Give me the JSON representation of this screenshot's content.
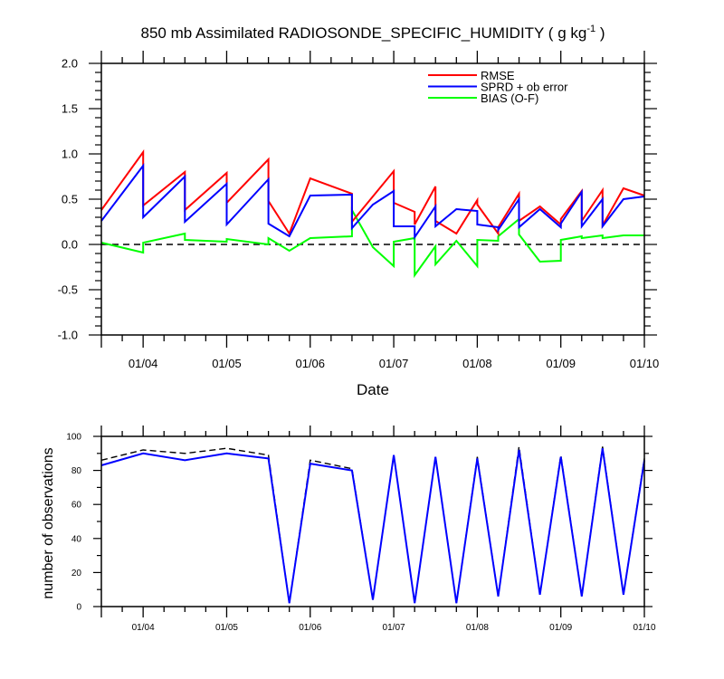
{
  "figure": {
    "title_main": "850 mb Assimilated RADIOSONDE_SPECIFIC_HUMIDITY ( g kg",
    "title_sup": "-1",
    "title_end": " )"
  },
  "chart_data": [
    {
      "type": "line",
      "title": "850 mb Assimilated RADIOSONDE_SPECIFIC_HUMIDITY ( g kg-1 )",
      "xlabel": "Date",
      "ylabel": "",
      "x_ticks": [
        "01/04",
        "01/05",
        "01/06",
        "01/07",
        "01/08",
        "01/09",
        "01/10"
      ],
      "x_tick_values": [
        1,
        2,
        3,
        4,
        5,
        6,
        7
      ],
      "xlim": [
        0.5,
        7
      ],
      "ylim": [
        -1.0,
        2.0
      ],
      "y_ticks": [
        "-1.0",
        "-0.5",
        "0.0",
        "0.5",
        "1.0",
        "1.5",
        "2.0"
      ],
      "y_tick_values": [
        -1.0,
        -0.5,
        0.0,
        0.5,
        1.0,
        1.5,
        2.0
      ],
      "reference_line": {
        "y": 0.0,
        "style": "dashed",
        "color": "#000000"
      },
      "legend": {
        "placement": "top-right"
      },
      "x": [
        0.5,
        1.0,
        1.0,
        1.5,
        1.5,
        2.0,
        2.0,
        2.5,
        2.5,
        2.75,
        3.0,
        3.5,
        3.5,
        3.75,
        4.0,
        4.0,
        4.25,
        4.25,
        4.5,
        4.5,
        4.75,
        5.0,
        5.0,
        5.25,
        5.25,
        5.5,
        5.5,
        5.75,
        6.0,
        6.0,
        6.25,
        6.25,
        6.5,
        6.5,
        6.75,
        7.0
      ],
      "series": [
        {
          "name": "RMSE",
          "color": "#ff0000",
          "values": [
            0.38,
            1.02,
            0.43,
            0.8,
            0.38,
            0.79,
            0.46,
            0.94,
            0.48,
            0.12,
            0.73,
            0.56,
            0.25,
            0.53,
            0.81,
            0.46,
            0.36,
            0.22,
            0.64,
            0.26,
            0.12,
            0.49,
            0.44,
            0.12,
            0.19,
            0.56,
            0.26,
            0.42,
            0.22,
            0.28,
            0.59,
            0.26,
            0.6,
            0.21,
            0.62,
            0.54
          ]
        },
        {
          "name": "SPRD + ob error",
          "color": "#0000ff",
          "values": [
            0.26,
            0.87,
            0.3,
            0.75,
            0.25,
            0.67,
            0.22,
            0.72,
            0.23,
            0.09,
            0.54,
            0.55,
            0.18,
            0.44,
            0.59,
            0.2,
            0.2,
            0.08,
            0.42,
            0.2,
            0.39,
            0.37,
            0.22,
            0.19,
            0.16,
            0.5,
            0.19,
            0.39,
            0.19,
            0.23,
            0.58,
            0.2,
            0.5,
            0.2,
            0.5,
            0.53
          ]
        },
        {
          "name": "BIAS (O-F)",
          "color": "#00ff00",
          "values": [
            0.02,
            -0.09,
            0.02,
            0.12,
            0.05,
            0.03,
            0.06,
            0.0,
            0.07,
            -0.07,
            0.07,
            0.09,
            0.38,
            -0.03,
            -0.24,
            0.03,
            0.07,
            -0.34,
            -0.02,
            -0.22,
            0.04,
            -0.24,
            0.05,
            0.04,
            0.09,
            0.28,
            0.11,
            -0.19,
            -0.18,
            0.05,
            0.09,
            0.07,
            0.1,
            0.07,
            0.1,
            0.1
          ]
        }
      ]
    },
    {
      "type": "line",
      "xlabel": "",
      "ylabel": "number of observations",
      "x_ticks": [
        "01/04",
        "01/05",
        "01/06",
        "01/07",
        "01/08",
        "01/09",
        "01/10"
      ],
      "x_tick_values": [
        1,
        2,
        3,
        4,
        5,
        6,
        7
      ],
      "xlim": [
        0.5,
        7
      ],
      "ylim": [
        0,
        100
      ],
      "y_ticks": [
        "0",
        "20",
        "40",
        "60",
        "80",
        "100"
      ],
      "y_tick_values": [
        0,
        20,
        40,
        60,
        80,
        100
      ],
      "x": [
        0.5,
        1.0,
        1.5,
        2.0,
        2.5,
        2.75,
        3.0,
        3.5,
        3.75,
        4.0,
        4.25,
        4.5,
        4.75,
        5.0,
        5.25,
        5.5,
        5.75,
        6.0,
        6.25,
        6.5,
        6.75,
        7.0
      ],
      "series": [
        {
          "color": "#000000",
          "style": "dashed",
          "values": [
            86,
            92,
            90,
            93,
            89,
            2,
            86,
            81,
            4,
            89,
            2,
            88,
            2,
            88,
            6,
            94,
            7,
            89,
            6,
            94,
            7,
            87
          ]
        },
        {
          "color": "#0000ff",
          "style": "solid",
          "values": [
            83,
            90,
            86,
            90,
            87,
            2,
            84,
            80,
            4,
            89,
            2,
            88,
            2,
            87,
            6,
            92,
            7,
            88,
            6,
            93,
            7,
            86
          ]
        }
      ]
    }
  ]
}
